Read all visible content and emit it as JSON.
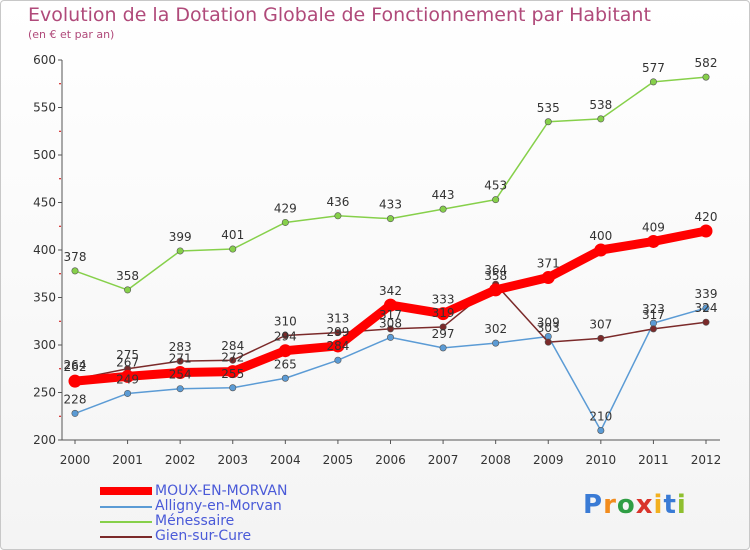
{
  "title": "Evolution de la Dotation Globale de Fonctionnement par Habitant",
  "subtitle": "(en € et par an)",
  "brand": {
    "letters": [
      "P",
      "r",
      "o",
      "x",
      "i",
      "t",
      "i"
    ],
    "colors": [
      "#3a7bd5",
      "#f28c1e",
      "#2f9e44",
      "#d9342b",
      "#f2b01e",
      "#3a7bd5",
      "#8fbf2f"
    ]
  },
  "chart_data": {
    "type": "line",
    "title": "Evolution de la Dotation Globale de Fonctionnement par Habitant",
    "ylabel": "(en € et par an)",
    "categories": [
      "2000",
      "2001",
      "2002",
      "2003",
      "2004",
      "2005",
      "2006",
      "2007",
      "2008",
      "2009",
      "2010",
      "2011",
      "2012"
    ],
    "ylim": [
      200,
      600
    ],
    "yticks": [
      200,
      250,
      300,
      350,
      400,
      450,
      500,
      550,
      600
    ],
    "series": [
      {
        "name": "MOUX-EN-MORVAN",
        "color": "#ff0000",
        "values": [
          262,
          267,
          271,
          272,
          294,
          299,
          342,
          333,
          358,
          371,
          400,
          409,
          420
        ]
      },
      {
        "name": "Alligny-en-Morvan",
        "color": "#5b9bd5",
        "values": [
          228,
          249,
          254,
          255,
          265,
          284,
          308,
          297,
          302,
          309,
          210,
          323,
          339
        ]
      },
      {
        "name": "Ménessaire",
        "color": "#86d04a",
        "values": [
          378,
          358,
          399,
          401,
          429,
          436,
          433,
          443,
          453,
          535,
          538,
          577,
          582
        ]
      },
      {
        "name": "Gien-sur-Cure",
        "color": "#7b2a2a",
        "values": [
          264,
          275,
          283,
          284,
          310,
          313,
          317,
          319,
          364,
          303,
          307,
          317,
          324
        ]
      }
    ]
  }
}
